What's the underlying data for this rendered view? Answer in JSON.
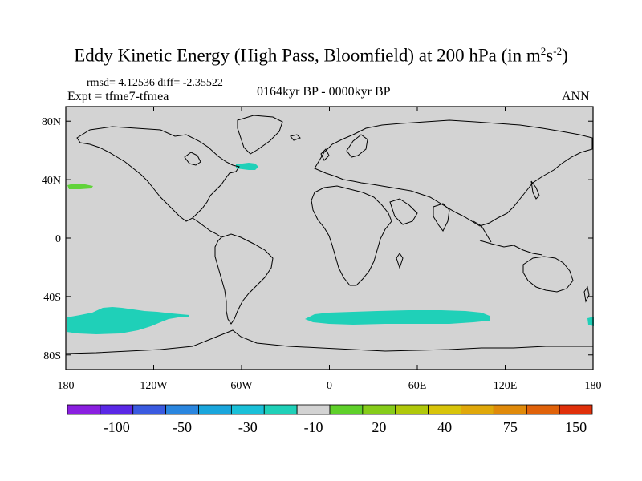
{
  "header": {
    "title_main": "Eddy Kinetic Energy (High Pass, Bloomfield) at 200 hPa (in m",
    "title_sup1": "2",
    "title_mid": "s",
    "title_sup2": "-2",
    "title_end": ")",
    "stats": "rmsd= 4.12536 diff= -2.35522",
    "experiment": "Expt = tfme7-tfmea",
    "period": "0164kyr BP - 0000kyr BP",
    "season": "ANN"
  },
  "axes": {
    "lat_ticks": [
      {
        "label": "80N",
        "value": 80
      },
      {
        "label": "40N",
        "value": 40
      },
      {
        "label": "0",
        "value": 0
      },
      {
        "label": "40S",
        "value": -40
      },
      {
        "label": "80S",
        "value": -80
      }
    ],
    "lon_ticks": [
      {
        "label": "180",
        "value": -180
      },
      {
        "label": "120W",
        "value": -120
      },
      {
        "label": "60W",
        "value": -60
      },
      {
        "label": "0",
        "value": 0
      },
      {
        "label": "60E",
        "value": 60
      },
      {
        "label": "120E",
        "value": 120
      },
      {
        "label": "180",
        "value": 180
      }
    ]
  },
  "map": {
    "projection": "cylindrical equidistant",
    "lon_range": [
      -180,
      180
    ],
    "lat_range": [
      -90,
      90
    ],
    "background_color": "#d3d3d3",
    "coastline_color": "#000000",
    "anomaly_regions": [
      {
        "value_band": "-10 to -30",
        "color": "#1fd0b8",
        "region": "Southern Ocean south of South America / South Pacific"
      },
      {
        "value_band": "-10 to -30",
        "color": "#1fd0b8",
        "region": "Southern Ocean south of Africa and Indian Ocean"
      },
      {
        "value_band": "-10 to -30",
        "color": "#1fd0b8",
        "region": "Southern Ocean south of Australia (east edge)"
      },
      {
        "value_band": "-10 to -30",
        "color": "#1fd0b8",
        "region": "Northwest Atlantic near Newfoundland"
      },
      {
        "value_band": "10 to 20",
        "color": "#61d33a",
        "region": "North Pacific near Date Line"
      }
    ]
  },
  "colorbar": {
    "colors": [
      "#8a1fe0",
      "#5a28e6",
      "#3a5ae0",
      "#2a86df",
      "#1aa6dc",
      "#1ac0d8",
      "#1fd0b8",
      "#d3d3d3",
      "#5fd02a",
      "#86cc1a",
      "#b0c80a",
      "#d8c40a",
      "#e0a80a",
      "#e08a0a",
      "#e0620a",
      "#e0300a"
    ],
    "labels": [
      {
        "text": "-100",
        "boundary": 2
      },
      {
        "text": "-50",
        "boundary": 4
      },
      {
        "text": "-30",
        "boundary": 6
      },
      {
        "text": "-10",
        "boundary": 8
      },
      {
        "text": "20",
        "boundary": 10
      },
      {
        "text": "40",
        "boundary": 12
      },
      {
        "text": "75",
        "boundary": 14
      },
      {
        "text": "150",
        "boundary": 16
      }
    ]
  }
}
